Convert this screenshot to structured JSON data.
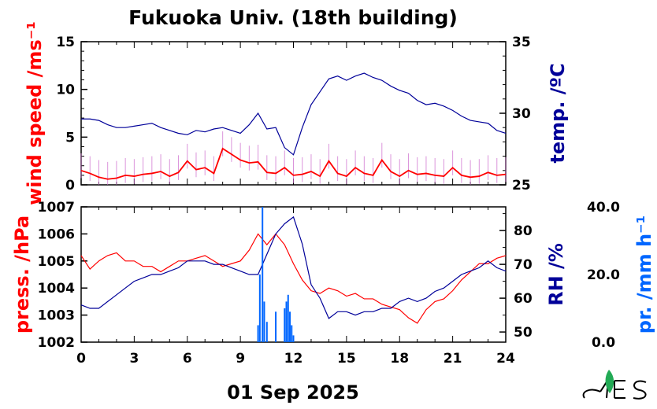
{
  "colors": {
    "wind": "#ff0000",
    "wind_gust": "#cc66cc",
    "temp": "#000099",
    "pressure": "#ff0000",
    "rh": "#000099",
    "precip": "#0066ff",
    "logo_green": "#22aa55"
  },
  "chart_data": [
    {
      "type": "line",
      "title": "Fukuoka Univ. (18th building)",
      "ylabel_left": "wind speed /ms⁻¹",
      "ylabel_right": "temp. /ºC",
      "xlim": [
        0,
        24
      ],
      "ylim_left": [
        0,
        15
      ],
      "ylim_right": [
        25,
        35
      ],
      "yticks_left": [
        "0",
        "5",
        "10",
        "15"
      ],
      "yticks_right": [
        "25",
        "30",
        "35"
      ],
      "series": [
        {
          "axis": "left",
          "color": "#ff0000",
          "x": [
            0,
            0.5,
            1,
            1.5,
            2,
            2.5,
            3,
            3.5,
            4,
            4.5,
            5,
            5.5,
            6,
            6.5,
            7,
            7.5,
            8,
            8.5,
            9,
            9.5,
            10,
            10.5,
            11,
            11.5,
            12,
            12.5,
            13,
            13.5,
            14,
            14.5,
            15,
            15.5,
            16,
            16.5,
            17,
            17.5,
            18,
            18.5,
            19,
            19.5,
            20,
            20.5,
            21,
            21.5,
            22,
            22.5,
            23,
            23.5,
            24
          ],
          "y": [
            1.5,
            1.2,
            0.8,
            0.6,
            0.7,
            1.0,
            0.9,
            1.1,
            1.2,
            1.4,
            0.9,
            1.3,
            2.5,
            1.6,
            1.8,
            1.2,
            3.8,
            3.2,
            2.6,
            2.3,
            2.4,
            1.3,
            1.2,
            1.8,
            1.0,
            1.1,
            1.4,
            0.9,
            2.5,
            1.2,
            0.9,
            1.8,
            1.2,
            1.0,
            2.6,
            1.4,
            0.9,
            1.5,
            1.1,
            1.2,
            1.0,
            0.9,
            1.8,
            1.0,
            0.8,
            0.9,
            1.3,
            1.0,
            1.1
          ]
        },
        {
          "axis": "right",
          "color": "#000099",
          "x": [
            0,
            0.5,
            1,
            1.5,
            2,
            2.5,
            3,
            3.5,
            4,
            4.5,
            5,
            5.5,
            6,
            6.5,
            7,
            7.5,
            8,
            8.5,
            9,
            9.5,
            10,
            10.5,
            11,
            11.5,
            12,
            12.5,
            13,
            13.5,
            14,
            14.5,
            15,
            15.5,
            16,
            16.5,
            17,
            17.5,
            18,
            18.5,
            19,
            19.5,
            20,
            20.5,
            21,
            21.5,
            22,
            22.5,
            23,
            23.5,
            24
          ],
          "y": [
            29.6,
            29.6,
            29.5,
            29.2,
            29.0,
            29.0,
            29.1,
            29.2,
            29.3,
            29.0,
            28.8,
            28.6,
            28.5,
            28.8,
            28.7,
            28.9,
            29.0,
            28.8,
            28.6,
            29.2,
            30.0,
            28.9,
            29.0,
            27.6,
            27.1,
            29.0,
            30.6,
            31.5,
            32.4,
            32.6,
            32.3,
            32.6,
            32.8,
            32.5,
            32.3,
            31.9,
            31.6,
            31.4,
            30.9,
            30.6,
            30.7,
            30.5,
            30.2,
            29.8,
            29.5,
            29.4,
            29.3,
            28.8,
            28.6
          ]
        }
      ]
    },
    {
      "type": "line",
      "date_label": "01 Sep 2025",
      "ylabel_left": "press. /hPa",
      "ylabel_right": "RH /%",
      "ylabel_far_right": "pr. /mm h⁻¹",
      "xlim": [
        0,
        24
      ],
      "xticks": [
        "0",
        "3",
        "6",
        "9",
        "12",
        "15",
        "18",
        "21",
        "24"
      ],
      "ylim_left": [
        1002,
        1007
      ],
      "ylim_right": [
        47,
        87
      ],
      "ylim_far_right": [
        0,
        40
      ],
      "yticks_left": [
        "1002",
        "1003",
        "1004",
        "1005",
        "1006",
        "1007"
      ],
      "yticks_right": [
        "50",
        "60",
        "70",
        "80"
      ],
      "yticks_far_right": [
        "0.0",
        "20.0",
        "40.0"
      ],
      "series": [
        {
          "axis": "left",
          "color": "#ff0000",
          "x": [
            0,
            0.5,
            1,
            1.5,
            2,
            2.5,
            3,
            3.5,
            4,
            4.5,
            5,
            5.5,
            6,
            6.5,
            7,
            7.5,
            8,
            8.5,
            9,
            9.5,
            10,
            10.5,
            11,
            11.5,
            12,
            12.5,
            13,
            13.5,
            14,
            14.5,
            15,
            15.5,
            16,
            16.5,
            17,
            17.5,
            18,
            18.5,
            19,
            19.5,
            20,
            20.5,
            21,
            21.5,
            22,
            22.5,
            23,
            23.5,
            24
          ],
          "y": [
            1005.2,
            1004.7,
            1005.0,
            1005.2,
            1005.3,
            1005.0,
            1005.0,
            1004.8,
            1004.8,
            1004.6,
            1004.8,
            1005.0,
            1005.0,
            1005.1,
            1005.2,
            1005.0,
            1004.8,
            1004.9,
            1005.0,
            1005.4,
            1006.0,
            1005.6,
            1006.0,
            1005.6,
            1004.9,
            1004.3,
            1003.9,
            1003.8,
            1004.0,
            1003.9,
            1003.7,
            1003.8,
            1003.6,
            1003.6,
            1003.4,
            1003.3,
            1003.2,
            1002.9,
            1002.7,
            1003.2,
            1003.5,
            1003.6,
            1003.9,
            1004.3,
            1004.6,
            1004.9,
            1004.9,
            1005.1,
            1005.2
          ]
        },
        {
          "axis": "right",
          "color": "#000099",
          "x": [
            0,
            0.5,
            1,
            1.5,
            2,
            2.5,
            3,
            3.5,
            4,
            4.5,
            5,
            5.5,
            6,
            6.5,
            7,
            7.5,
            8,
            8.5,
            9,
            9.5,
            10,
            10.5,
            11,
            11.5,
            12,
            12.5,
            13,
            13.5,
            14,
            14.5,
            15,
            15.5,
            16,
            16.5,
            17,
            17.5,
            18,
            18.5,
            19,
            19.5,
            20,
            20.5,
            21,
            21.5,
            22,
            22.5,
            23,
            23.5,
            24
          ],
          "y": [
            58,
            57,
            57,
            59,
            61,
            63,
            65,
            66,
            67,
            67,
            68,
            69,
            71,
            71,
            71,
            70,
            70,
            69,
            68,
            67,
            67,
            73,
            79,
            82,
            84,
            76,
            64,
            60,
            54,
            56,
            56,
            55,
            56,
            56,
            57,
            57,
            59,
            60,
            59,
            60,
            62,
            63,
            65,
            67,
            68,
            69,
            71,
            69,
            68
          ]
        },
        {
          "axis": "far_right",
          "type": "bar",
          "color": "#0066ff",
          "x": [
            10.0,
            10.1,
            10.25,
            10.35,
            10.5,
            11.0,
            11.5,
            11.6,
            11.7,
            11.8,
            11.9,
            12.0
          ],
          "y": [
            5,
            20,
            40,
            12,
            6,
            9,
            10,
            12,
            14,
            9,
            5,
            2
          ]
        }
      ]
    }
  ]
}
